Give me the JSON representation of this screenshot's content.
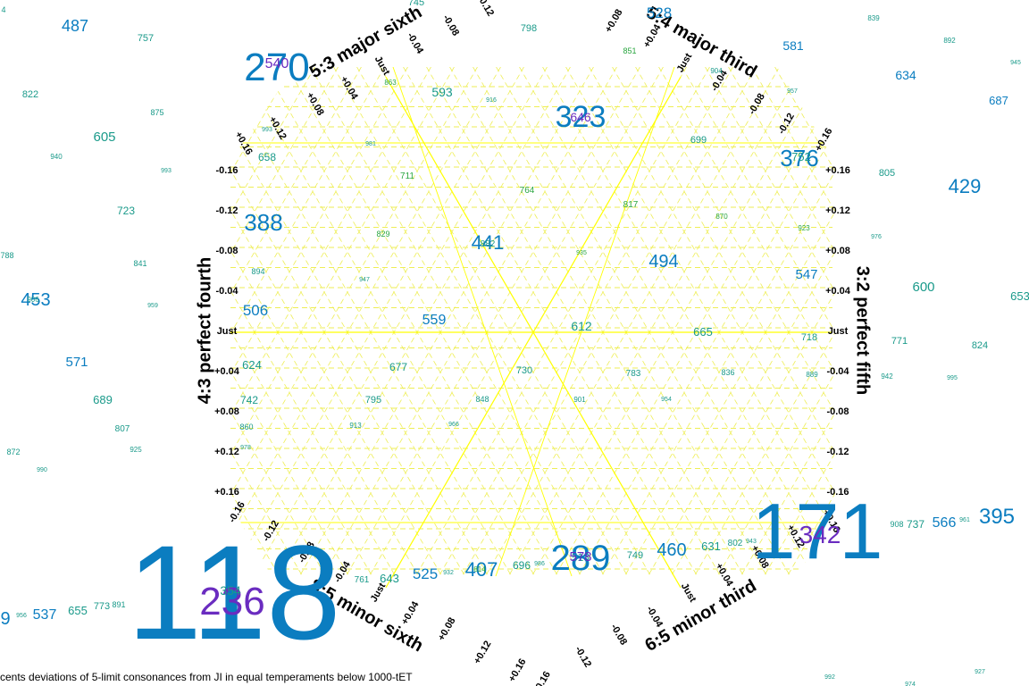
{
  "caption": "cents deviations of 5-limit consonances from JI in equal temperaments below 1000-tET",
  "colors": {
    "grid": "#ffff00",
    "grid_dashed": "#eeee55",
    "label_blue": "#0b7dc0",
    "label_purple": "#6a2cc0",
    "label_teal": "#1a9a8a",
    "label_green": "#2aa640",
    "axis_text": "#000000"
  },
  "axes": [
    {
      "name": "3:2 perfect fifth",
      "side": "right"
    },
    {
      "name": "4:3 perfect fourth",
      "side": "left"
    },
    {
      "name": "5:4 major third",
      "side": "upper-right"
    },
    {
      "name": "8:5 minor sixth",
      "side": "lower-left"
    },
    {
      "name": "5:3 major sixth",
      "side": "upper-left"
    },
    {
      "name": "6:5 minor third",
      "side": "lower-right"
    }
  ],
  "tick_labels": {
    "fifth": [
      "+0.16",
      "+0.12",
      "+0.08",
      "+0.04",
      "Just",
      "-0.04",
      "-0.08",
      "-0.12",
      "-0.16"
    ],
    "fourth": [
      "-0.16",
      "-0.12",
      "-0.08",
      "-0.04",
      "Just",
      "+0.04",
      "+0.08",
      "+0.12",
      "+0.16"
    ],
    "major_third": [
      "+0.08",
      "+0.04",
      "Just",
      "-0.04",
      "-0.08",
      "-0.12",
      "+0.16"
    ],
    "major_sixth": [
      "+0.16",
      "+0.12",
      "+0.08",
      "+0.04",
      "Just",
      "-0.04",
      "-0.08",
      "-0.12"
    ],
    "minor_sixth": [
      "-0.16",
      "-0.12",
      "-0.08",
      "-0.04",
      "Just",
      "+0.04",
      "+0.08",
      "+0.12",
      "+0.16",
      "-0.16"
    ],
    "minor_third": [
      "-0.08",
      "-0.04",
      "Just",
      "+0.04",
      "+0.08",
      "+0.12",
      "+0.16",
      "-0.12"
    ]
  },
  "tet_labels": [
    {
      "text": "118",
      "size": 150,
      "color": "blue"
    },
    {
      "text": "171",
      "size": 88,
      "color": "blue"
    },
    {
      "text": "270",
      "size": 44,
      "color": "blue"
    },
    {
      "text": "540",
      "size": 16,
      "color": "purple"
    },
    {
      "text": "236",
      "size": 44,
      "color": "purple"
    },
    {
      "text": "354",
      "size": 14,
      "color": "teal"
    },
    {
      "text": "342",
      "size": 28,
      "color": "purple"
    },
    {
      "text": "513",
      "size": 12,
      "color": "teal"
    },
    {
      "text": "323",
      "size": 34,
      "color": "blue"
    },
    {
      "text": "646",
      "size": 14,
      "color": "purple"
    },
    {
      "text": "289",
      "size": 40,
      "color": "blue"
    },
    {
      "text": "578",
      "size": 15,
      "color": "purple"
    },
    {
      "text": "376",
      "size": 26,
      "color": "blue"
    },
    {
      "text": "752",
      "size": 13,
      "color": "teal"
    },
    {
      "text": "388",
      "size": 26,
      "color": "blue"
    },
    {
      "text": "441",
      "size": 22,
      "color": "blue"
    },
    {
      "text": "882",
      "size": 10,
      "color": "teal"
    },
    {
      "text": "494",
      "size": 20,
      "color": "blue"
    },
    {
      "text": "559",
      "size": 16,
      "color": "blue"
    },
    {
      "text": "612",
      "size": 14,
      "color": "teal"
    },
    {
      "text": "665",
      "size": 13,
      "color": "teal"
    },
    {
      "text": "718",
      "size": 11,
      "color": "teal"
    },
    {
      "text": "506",
      "size": 17,
      "color": "blue"
    },
    {
      "text": "547",
      "size": 15,
      "color": "blue"
    },
    {
      "text": "593",
      "size": 14,
      "color": "teal"
    },
    {
      "text": "658",
      "size": 12,
      "color": "teal"
    },
    {
      "text": "699",
      "size": 11,
      "color": "teal"
    },
    {
      "text": "711",
      "size": 10,
      "color": "green"
    },
    {
      "text": "764",
      "size": 10,
      "color": "green"
    },
    {
      "text": "817",
      "size": 10,
      "color": "green"
    },
    {
      "text": "870",
      "size": 8,
      "color": "green"
    },
    {
      "text": "923",
      "size": 8,
      "color": "green"
    },
    {
      "text": "829",
      "size": 9,
      "color": "green"
    },
    {
      "text": "935",
      "size": 7,
      "color": "green"
    },
    {
      "text": "894",
      "size": 9,
      "color": "teal"
    },
    {
      "text": "947",
      "size": 7,
      "color": "teal"
    },
    {
      "text": "624",
      "size": 13,
      "color": "teal"
    },
    {
      "text": "677",
      "size": 12,
      "color": "teal"
    },
    {
      "text": "730",
      "size": 11,
      "color": "teal"
    },
    {
      "text": "783",
      "size": 10,
      "color": "teal"
    },
    {
      "text": "836",
      "size": 9,
      "color": "teal"
    },
    {
      "text": "889",
      "size": 8,
      "color": "teal"
    },
    {
      "text": "742",
      "size": 12,
      "color": "teal"
    },
    {
      "text": "795",
      "size": 11,
      "color": "teal"
    },
    {
      "text": "848",
      "size": 9,
      "color": "teal"
    },
    {
      "text": "901",
      "size": 8,
      "color": "teal"
    },
    {
      "text": "954",
      "size": 7,
      "color": "teal"
    },
    {
      "text": "860",
      "size": 9,
      "color": "teal"
    },
    {
      "text": "913",
      "size": 8,
      "color": "teal"
    },
    {
      "text": "966",
      "size": 7,
      "color": "teal"
    },
    {
      "text": "978",
      "size": 7,
      "color": "teal"
    },
    {
      "text": "643",
      "size": 13,
      "color": "teal"
    },
    {
      "text": "761",
      "size": 10,
      "color": "teal"
    },
    {
      "text": "407",
      "size": 22,
      "color": "blue"
    },
    {
      "text": "525",
      "size": 17,
      "color": "blue"
    },
    {
      "text": "696",
      "size": 12,
      "color": "teal"
    },
    {
      "text": "749",
      "size": 11,
      "color": "teal"
    },
    {
      "text": "460",
      "size": 20,
      "color": "blue"
    },
    {
      "text": "631",
      "size": 13,
      "color": "teal"
    },
    {
      "text": "802",
      "size": 10,
      "color": "teal"
    },
    {
      "text": "814",
      "size": 8,
      "color": "green"
    },
    {
      "text": "932",
      "size": 7,
      "color": "teal"
    },
    {
      "text": "986",
      "size": 7,
      "color": "teal"
    },
    {
      "text": "943",
      "size": 7,
      "color": "teal"
    },
    {
      "text": "798",
      "size": 11,
      "color": "teal"
    },
    {
      "text": "851",
      "size": 9,
      "color": "green"
    },
    {
      "text": "904",
      "size": 8,
      "color": "teal"
    },
    {
      "text": "957",
      "size": 7,
      "color": "teal"
    },
    {
      "text": "863",
      "size": 8,
      "color": "green"
    },
    {
      "text": "916",
      "size": 7,
      "color": "teal"
    },
    {
      "text": "981",
      "size": 7,
      "color": "teal"
    },
    {
      "text": "993",
      "size": 7,
      "color": "teal"
    },
    {
      "text": "528",
      "size": 17,
      "color": "blue"
    },
    {
      "text": "745",
      "size": 11,
      "color": "teal"
    },
    {
      "text": "581",
      "size": 14,
      "color": "blue"
    },
    {
      "text": "634",
      "size": 14,
      "color": "blue"
    },
    {
      "text": "687",
      "size": 13,
      "color": "blue"
    },
    {
      "text": "839",
      "size": 8,
      "color": "teal"
    },
    {
      "text": "892",
      "size": 8,
      "color": "teal"
    },
    {
      "text": "945",
      "size": 7,
      "color": "teal"
    },
    {
      "text": "429",
      "size": 22,
      "color": "blue"
    },
    {
      "text": "805",
      "size": 11,
      "color": "teal"
    },
    {
      "text": "976",
      "size": 7,
      "color": "teal"
    },
    {
      "text": "600",
      "size": 15,
      "color": "teal"
    },
    {
      "text": "653",
      "size": 13,
      "color": "teal"
    },
    {
      "text": "771",
      "size": 11,
      "color": "teal"
    },
    {
      "text": "824",
      "size": 11,
      "color": "teal"
    },
    {
      "text": "942",
      "size": 8,
      "color": "teal"
    },
    {
      "text": "995",
      "size": 7,
      "color": "teal"
    },
    {
      "text": "395",
      "size": 24,
      "color": "blue"
    },
    {
      "text": "566",
      "size": 16,
      "color": "blue"
    },
    {
      "text": "737",
      "size": 12,
      "color": "teal"
    },
    {
      "text": "908",
      "size": 9,
      "color": "teal"
    },
    {
      "text": "961",
      "size": 7,
      "color": "teal"
    },
    {
      "text": "992",
      "size": 7,
      "color": "teal"
    },
    {
      "text": "927",
      "size": 7,
      "color": "teal"
    },
    {
      "text": "974",
      "size": 7,
      "color": "teal"
    },
    {
      "text": "487",
      "size": 18,
      "color": "blue"
    },
    {
      "text": "757",
      "size": 11,
      "color": "teal"
    },
    {
      "text": "822",
      "size": 11,
      "color": "teal"
    },
    {
      "text": "875",
      "size": 9,
      "color": "teal"
    },
    {
      "text": "605",
      "size": 15,
      "color": "teal"
    },
    {
      "text": "940",
      "size": 8,
      "color": "teal"
    },
    {
      "text": "993",
      "size": 7,
      "color": "teal"
    },
    {
      "text": "723",
      "size": 12,
      "color": "teal"
    },
    {
      "text": "788",
      "size": 9,
      "color": "teal"
    },
    {
      "text": "841",
      "size": 9,
      "color": "teal"
    },
    {
      "text": "453",
      "size": 20,
      "color": "blue"
    },
    {
      "text": "906",
      "size": 8,
      "color": "teal"
    },
    {
      "text": "959",
      "size": 7,
      "color": "teal"
    },
    {
      "text": "571",
      "size": 15,
      "color": "blue"
    },
    {
      "text": "689",
      "size": 13,
      "color": "teal"
    },
    {
      "text": "807",
      "size": 10,
      "color": "teal"
    },
    {
      "text": "872",
      "size": 9,
      "color": "teal"
    },
    {
      "text": "925",
      "size": 8,
      "color": "teal"
    },
    {
      "text": "990",
      "size": 7,
      "color": "teal"
    },
    {
      "text": "537",
      "size": 16,
      "color": "blue"
    },
    {
      "text": "655",
      "size": 13,
      "color": "teal"
    },
    {
      "text": "773",
      "size": 11,
      "color": "teal"
    },
    {
      "text": "891",
      "size": 9,
      "color": "teal"
    },
    {
      "text": "956",
      "size": 7,
      "color": "teal"
    },
    {
      "text": "9",
      "size": 20,
      "color": "blue"
    },
    {
      "text": "4",
      "size": 9,
      "color": "teal"
    }
  ]
}
